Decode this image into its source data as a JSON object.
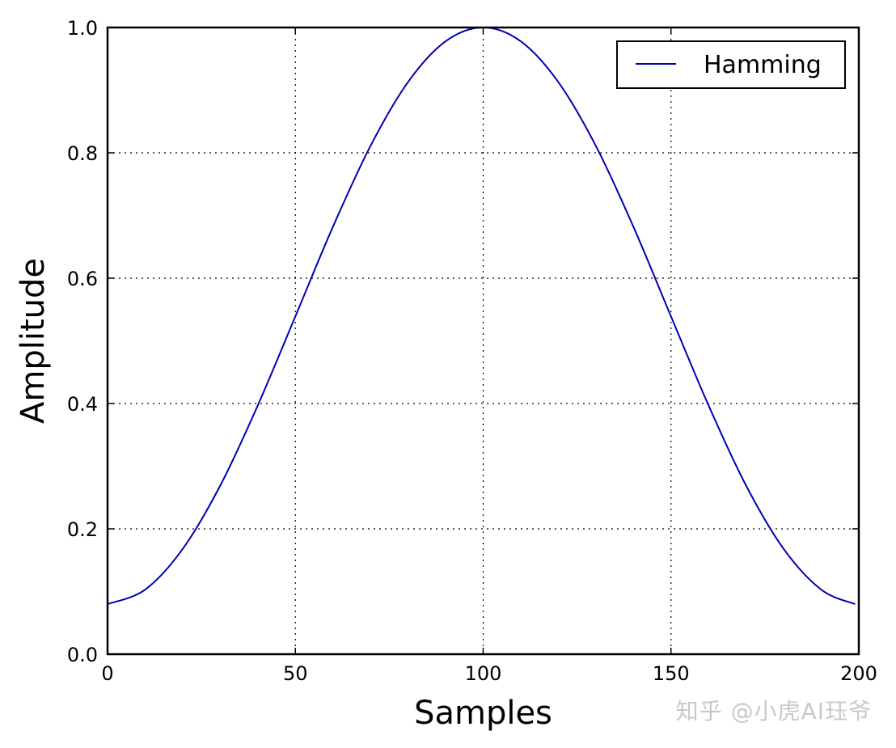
{
  "chart_data": {
    "type": "line",
    "title": "",
    "xlabel": "Samples",
    "ylabel": "Amplitude",
    "xlim": [
      0,
      200
    ],
    "ylim": [
      0.0,
      1.0
    ],
    "xticks": [
      "0",
      "50",
      "100",
      "150",
      "200"
    ],
    "yticks": [
      "0.0",
      "0.2",
      "0.4",
      "0.6",
      "0.8",
      "1.0"
    ],
    "grid": true,
    "grid_style": "dotted",
    "legend_position": "top-right",
    "series": [
      {
        "name": "Hamming",
        "color": "#0000b4",
        "x": [
          0,
          10,
          20,
          30,
          40,
          50,
          60,
          70,
          80,
          90,
          100,
          110,
          120,
          130,
          140,
          150,
          160,
          170,
          180,
          190,
          199
        ],
        "y": [
          0.08,
          0.103,
          0.168,
          0.269,
          0.397,
          0.539,
          0.682,
          0.811,
          0.913,
          0.978,
          1.0,
          0.978,
          0.913,
          0.811,
          0.682,
          0.539,
          0.397,
          0.269,
          0.168,
          0.103,
          0.08
        ]
      }
    ]
  },
  "watermark": "知乎 @小虎AI珏爷"
}
